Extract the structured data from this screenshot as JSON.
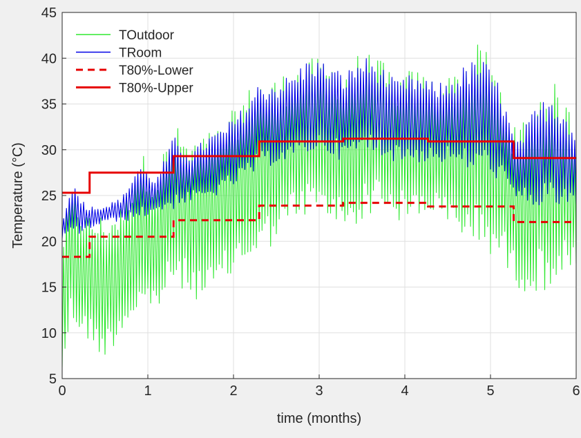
{
  "chart_data": {
    "type": "line",
    "title": "",
    "xlabel": "time (months)",
    "ylabel": "Temperature (°C)",
    "xlim": [
      0,
      6
    ],
    "ylim": [
      5,
      45
    ],
    "x_ticks": [
      0,
      1,
      2,
      3,
      4,
      5,
      6
    ],
    "y_ticks": [
      5,
      10,
      15,
      20,
      25,
      30,
      35,
      40,
      45
    ],
    "x_tick_labels": [
      "0",
      "1",
      "2",
      "3",
      "4",
      "5",
      "6"
    ],
    "y_tick_labels": [
      "5",
      "10",
      "15",
      "20",
      "25",
      "30",
      "35",
      "40",
      "45"
    ],
    "grid": true,
    "legend_position": "top-left",
    "series": [
      {
        "name": "TOutdoor",
        "color": "#2ee82e",
        "style": "solid",
        "note_values_approx": "daily-oscillating",
        "min_envelope": {
          "x": [
            0,
            0.1,
            0.3,
            0.5,
            0.7,
            0.9,
            1.1,
            1.3,
            1.5,
            1.7,
            1.9,
            2.1,
            2.3,
            2.5,
            2.7,
            2.9,
            3.1,
            3.3,
            3.5,
            3.7,
            3.9,
            4.1,
            4.3,
            4.5,
            4.7,
            4.9,
            5.1,
            5.3,
            5.5,
            5.7,
            5.9,
            6.0
          ],
          "y": [
            5,
            11,
            9,
            7,
            10,
            12,
            12,
            15,
            14,
            13,
            15,
            17,
            18,
            20,
            22,
            23,
            22,
            21,
            22,
            24,
            22,
            22,
            23,
            21,
            20,
            19,
            18,
            15,
            14,
            15,
            16,
            16
          ]
        },
        "max_envelope": {
          "x": [
            0,
            0.1,
            0.3,
            0.5,
            0.7,
            0.9,
            1.1,
            1.3,
            1.5,
            1.7,
            1.9,
            2.1,
            2.3,
            2.5,
            2.7,
            2.9,
            3.1,
            3.3,
            3.5,
            3.7,
            3.9,
            4.1,
            4.3,
            4.5,
            4.7,
            4.9,
            5.1,
            5.3,
            5.5,
            5.7,
            5.9,
            6.0
          ],
          "y": [
            21,
            26,
            23,
            23,
            24,
            30,
            28,
            33,
            31,
            32,
            33,
            36,
            38,
            38,
            39,
            40,
            40,
            39,
            41,
            40,
            38,
            39,
            38,
            38,
            40,
            42,
            38,
            32,
            36,
            38,
            35,
            33
          ]
        }
      },
      {
        "name": "TRoom",
        "color": "#0000e6",
        "style": "solid",
        "note_values_approx": "daily-oscillating",
        "min_envelope": {
          "x": [
            0,
            0.1,
            0.3,
            0.5,
            0.7,
            0.9,
            1.1,
            1.3,
            1.5,
            1.7,
            1.9,
            2.1,
            2.3,
            2.5,
            2.7,
            2.9,
            3.1,
            3.3,
            3.5,
            3.7,
            3.9,
            4.1,
            4.3,
            4.5,
            4.7,
            4.9,
            5.1,
            5.3,
            5.5,
            5.7,
            5.9,
            6.0
          ],
          "y": [
            20,
            20,
            21,
            22,
            22,
            22,
            23,
            23,
            24,
            24,
            25,
            26,
            27,
            28,
            28,
            29,
            29,
            28,
            29,
            29,
            28,
            28,
            28,
            28,
            27,
            27,
            26,
            24,
            23,
            23,
            23,
            23
          ]
        },
        "max_envelope": {
          "x": [
            0,
            0.1,
            0.3,
            0.5,
            0.7,
            0.9,
            1.1,
            1.3,
            1.5,
            1.7,
            1.9,
            2.1,
            2.3,
            2.5,
            2.7,
            2.9,
            3.1,
            3.3,
            3.5,
            3.7,
            3.9,
            4.1,
            4.3,
            4.5,
            4.7,
            4.9,
            5.1,
            5.3,
            5.5,
            5.7,
            5.9,
            6.0
          ],
          "y": [
            22,
            27,
            24,
            24,
            25,
            29,
            27,
            32,
            30,
            32,
            33,
            35,
            38,
            38,
            39,
            41,
            40,
            39,
            41,
            40,
            38,
            39,
            38,
            38,
            40,
            41,
            38,
            31,
            35,
            37,
            35,
            32
          ]
        }
      },
      {
        "name": "T80%-Lower",
        "color": "#e60000",
        "style": "dashed",
        "steps": {
          "x": [
            0,
            0.32,
            0.32,
            1.3,
            1.3,
            2.3,
            2.3,
            3.28,
            3.28,
            4.27,
            4.27,
            5.27,
            5.27,
            6.0
          ],
          "y": [
            18.3,
            18.3,
            20.5,
            20.5,
            22.3,
            22.3,
            23.9,
            23.9,
            24.2,
            24.2,
            23.8,
            23.8,
            22.1,
            22.1
          ]
        }
      },
      {
        "name": "T80%-Upper",
        "color": "#e60000",
        "style": "solid",
        "steps": {
          "x": [
            0,
            0.32,
            0.32,
            1.3,
            1.3,
            2.3,
            2.3,
            3.28,
            3.28,
            4.27,
            4.27,
            5.27,
            5.27,
            6.0
          ],
          "y": [
            25.3,
            25.3,
            27.5,
            27.5,
            29.3,
            29.3,
            30.9,
            30.9,
            31.2,
            31.2,
            30.9,
            30.9,
            29.1,
            29.1
          ]
        }
      }
    ]
  }
}
